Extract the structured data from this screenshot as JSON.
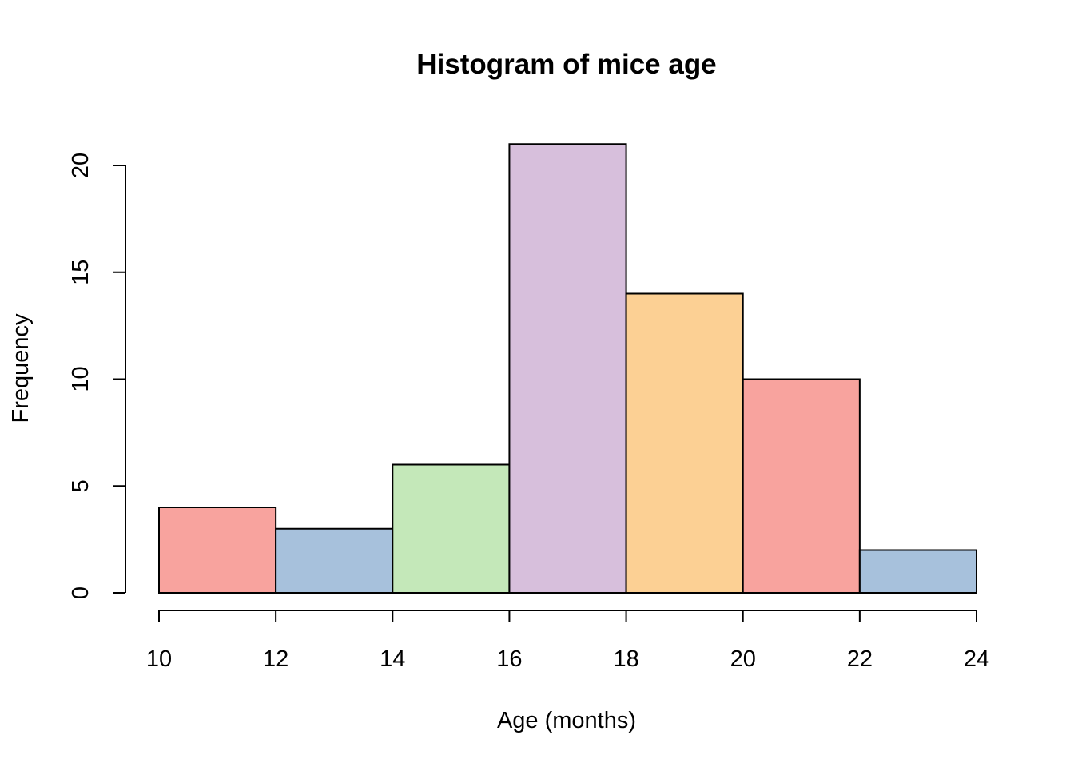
{
  "chart_data": {
    "type": "bar",
    "title": "Histogram of mice age",
    "xlabel": "Age (months)",
    "ylabel": "Frequency",
    "bins": [
      {
        "start": 10,
        "end": 12,
        "count": 4,
        "color": "#F8A39E"
      },
      {
        "start": 12,
        "end": 14,
        "count": 3,
        "color": "#A7C1DC"
      },
      {
        "start": 14,
        "end": 16,
        "count": 6,
        "color": "#C4E8B9"
      },
      {
        "start": 16,
        "end": 18,
        "count": 21,
        "color": "#D7BFDC"
      },
      {
        "start": 18,
        "end": 20,
        "count": 14,
        "color": "#FCD094"
      },
      {
        "start": 20,
        "end": 22,
        "count": 10,
        "color": "#F8A39E"
      },
      {
        "start": 22,
        "end": 24,
        "count": 2,
        "color": "#A7C1DC"
      }
    ],
    "xlim": [
      10,
      24
    ],
    "ylim": [
      0,
      21
    ],
    "x_ticks": [
      "10",
      "12",
      "14",
      "16",
      "18",
      "20",
      "22",
      "24"
    ],
    "y_ticks": [
      "0",
      "5",
      "10",
      "15",
      "20"
    ],
    "grid": false,
    "legend": "none"
  }
}
